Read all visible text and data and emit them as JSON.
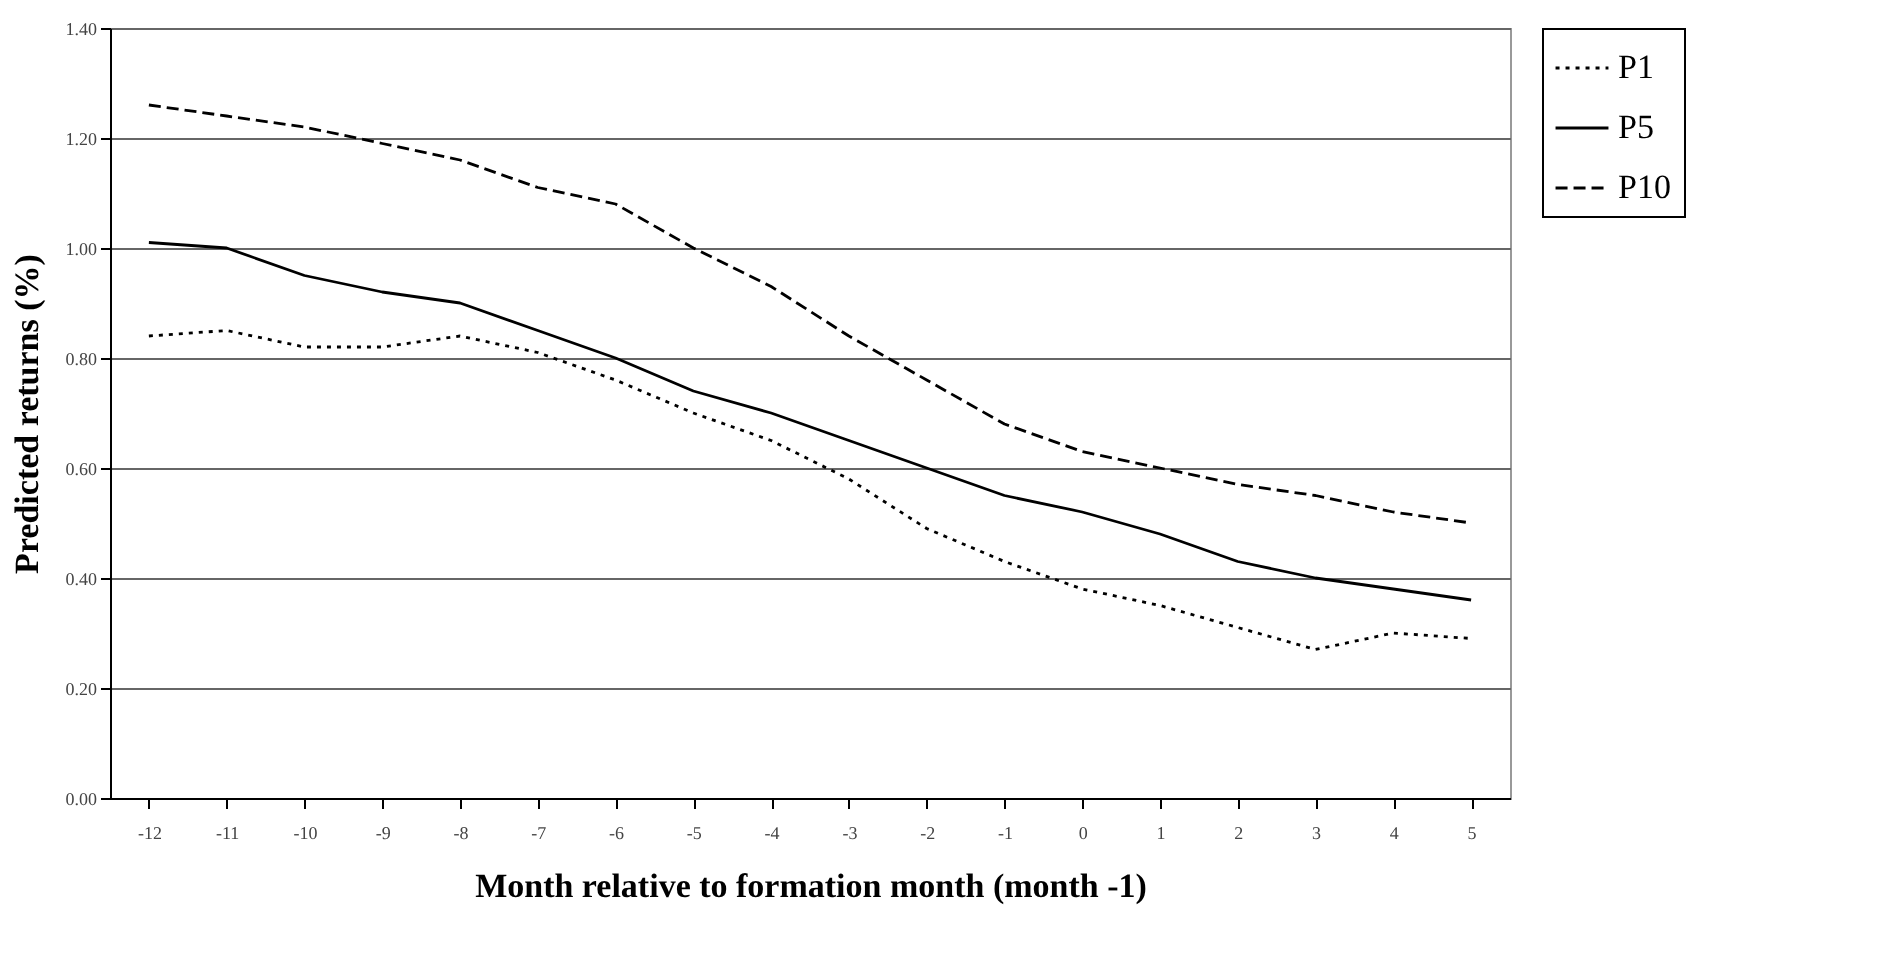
{
  "chart_data": {
    "type": "line",
    "xlabel": "Month relative to formation month (month -1)",
    "ylabel": "Predicted returns (%)",
    "categories": [
      "-12",
      "-11",
      "-10",
      "-9",
      "-8",
      "-7",
      "-6",
      "-5",
      "-4",
      "-3",
      "-2",
      "-1",
      "0",
      "1",
      "2",
      "3",
      "4",
      "5"
    ],
    "series": [
      {
        "name": "P1",
        "color": "#000000",
        "line_style": "dotted",
        "values": [
          0.84,
          0.85,
          0.82,
          0.82,
          0.84,
          0.81,
          0.76,
          0.7,
          0.65,
          0.58,
          0.49,
          0.43,
          0.38,
          0.35,
          0.31,
          0.27,
          0.3,
          0.29
        ]
      },
      {
        "name": "P5",
        "color": "#000000",
        "line_style": "solid",
        "values": [
          1.01,
          1.0,
          0.95,
          0.92,
          0.9,
          0.85,
          0.8,
          0.74,
          0.7,
          0.65,
          0.6,
          0.55,
          0.52,
          0.48,
          0.43,
          0.4,
          0.38,
          0.36
        ]
      },
      {
        "name": "P10",
        "color": "#000000",
        "line_style": "dashed",
        "values": [
          1.26,
          1.24,
          1.22,
          1.19,
          1.16,
          1.11,
          1.08,
          1.0,
          0.93,
          0.84,
          0.76,
          0.68,
          0.63,
          0.6,
          0.57,
          0.55,
          0.52,
          0.5
        ]
      }
    ],
    "ylim": [
      0,
      1.4
    ],
    "yticks": [
      {
        "value": 0,
        "label": "0.00"
      },
      {
        "value": 0.2,
        "label": "0.20"
      },
      {
        "value": 0.4,
        "label": "0.40"
      },
      {
        "value": 0.6,
        "label": "0.60"
      },
      {
        "value": 0.8,
        "label": "0.80"
      },
      {
        "value": 1.0,
        "label": "1.00"
      },
      {
        "value": 1.2,
        "label": "1.20"
      },
      {
        "value": 1.4,
        "label": "1.40"
      }
    ],
    "grid": "y",
    "legend": "right"
  }
}
